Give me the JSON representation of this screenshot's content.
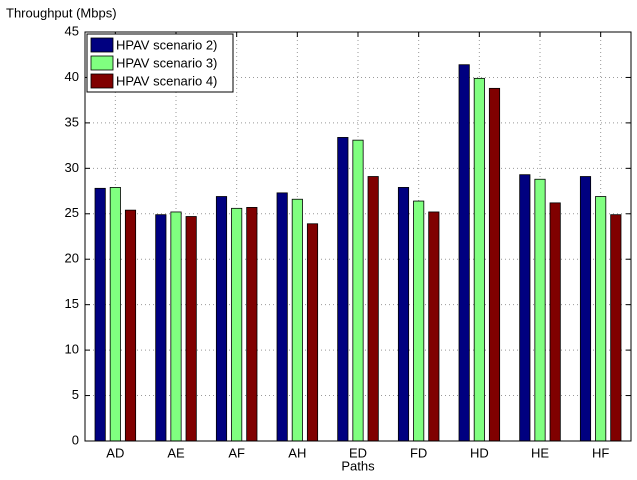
{
  "chart_data": {
    "type": "bar",
    "y_label": "Throughput (Mbps)",
    "x_label": "Paths",
    "categories": [
      "AD",
      "AE",
      "AF",
      "AH",
      "ED",
      "FD",
      "HD",
      "HE",
      "HF"
    ],
    "series": [
      {
        "name": "HPAV scenario 2)",
        "color": "#000080",
        "values": [
          27.8,
          24.9,
          26.9,
          27.3,
          33.4,
          27.9,
          41.4,
          29.3,
          29.1
        ]
      },
      {
        "name": "HPAV scenario 3)",
        "color": "#80ff80",
        "values": [
          27.9,
          25.2,
          25.6,
          26.6,
          33.1,
          26.4,
          39.9,
          28.8,
          26.9
        ]
      },
      {
        "name": "HPAV scenario 4)",
        "color": "#800000",
        "values": [
          25.4,
          24.7,
          25.7,
          23.9,
          29.1,
          25.2,
          38.8,
          26.2,
          24.9
        ]
      }
    ],
    "ylim": [
      0,
      45
    ],
    "yticks": [
      0,
      5,
      10,
      15,
      20,
      25,
      30,
      35,
      40,
      45
    ],
    "grid": true,
    "legend": "upper-left"
  }
}
